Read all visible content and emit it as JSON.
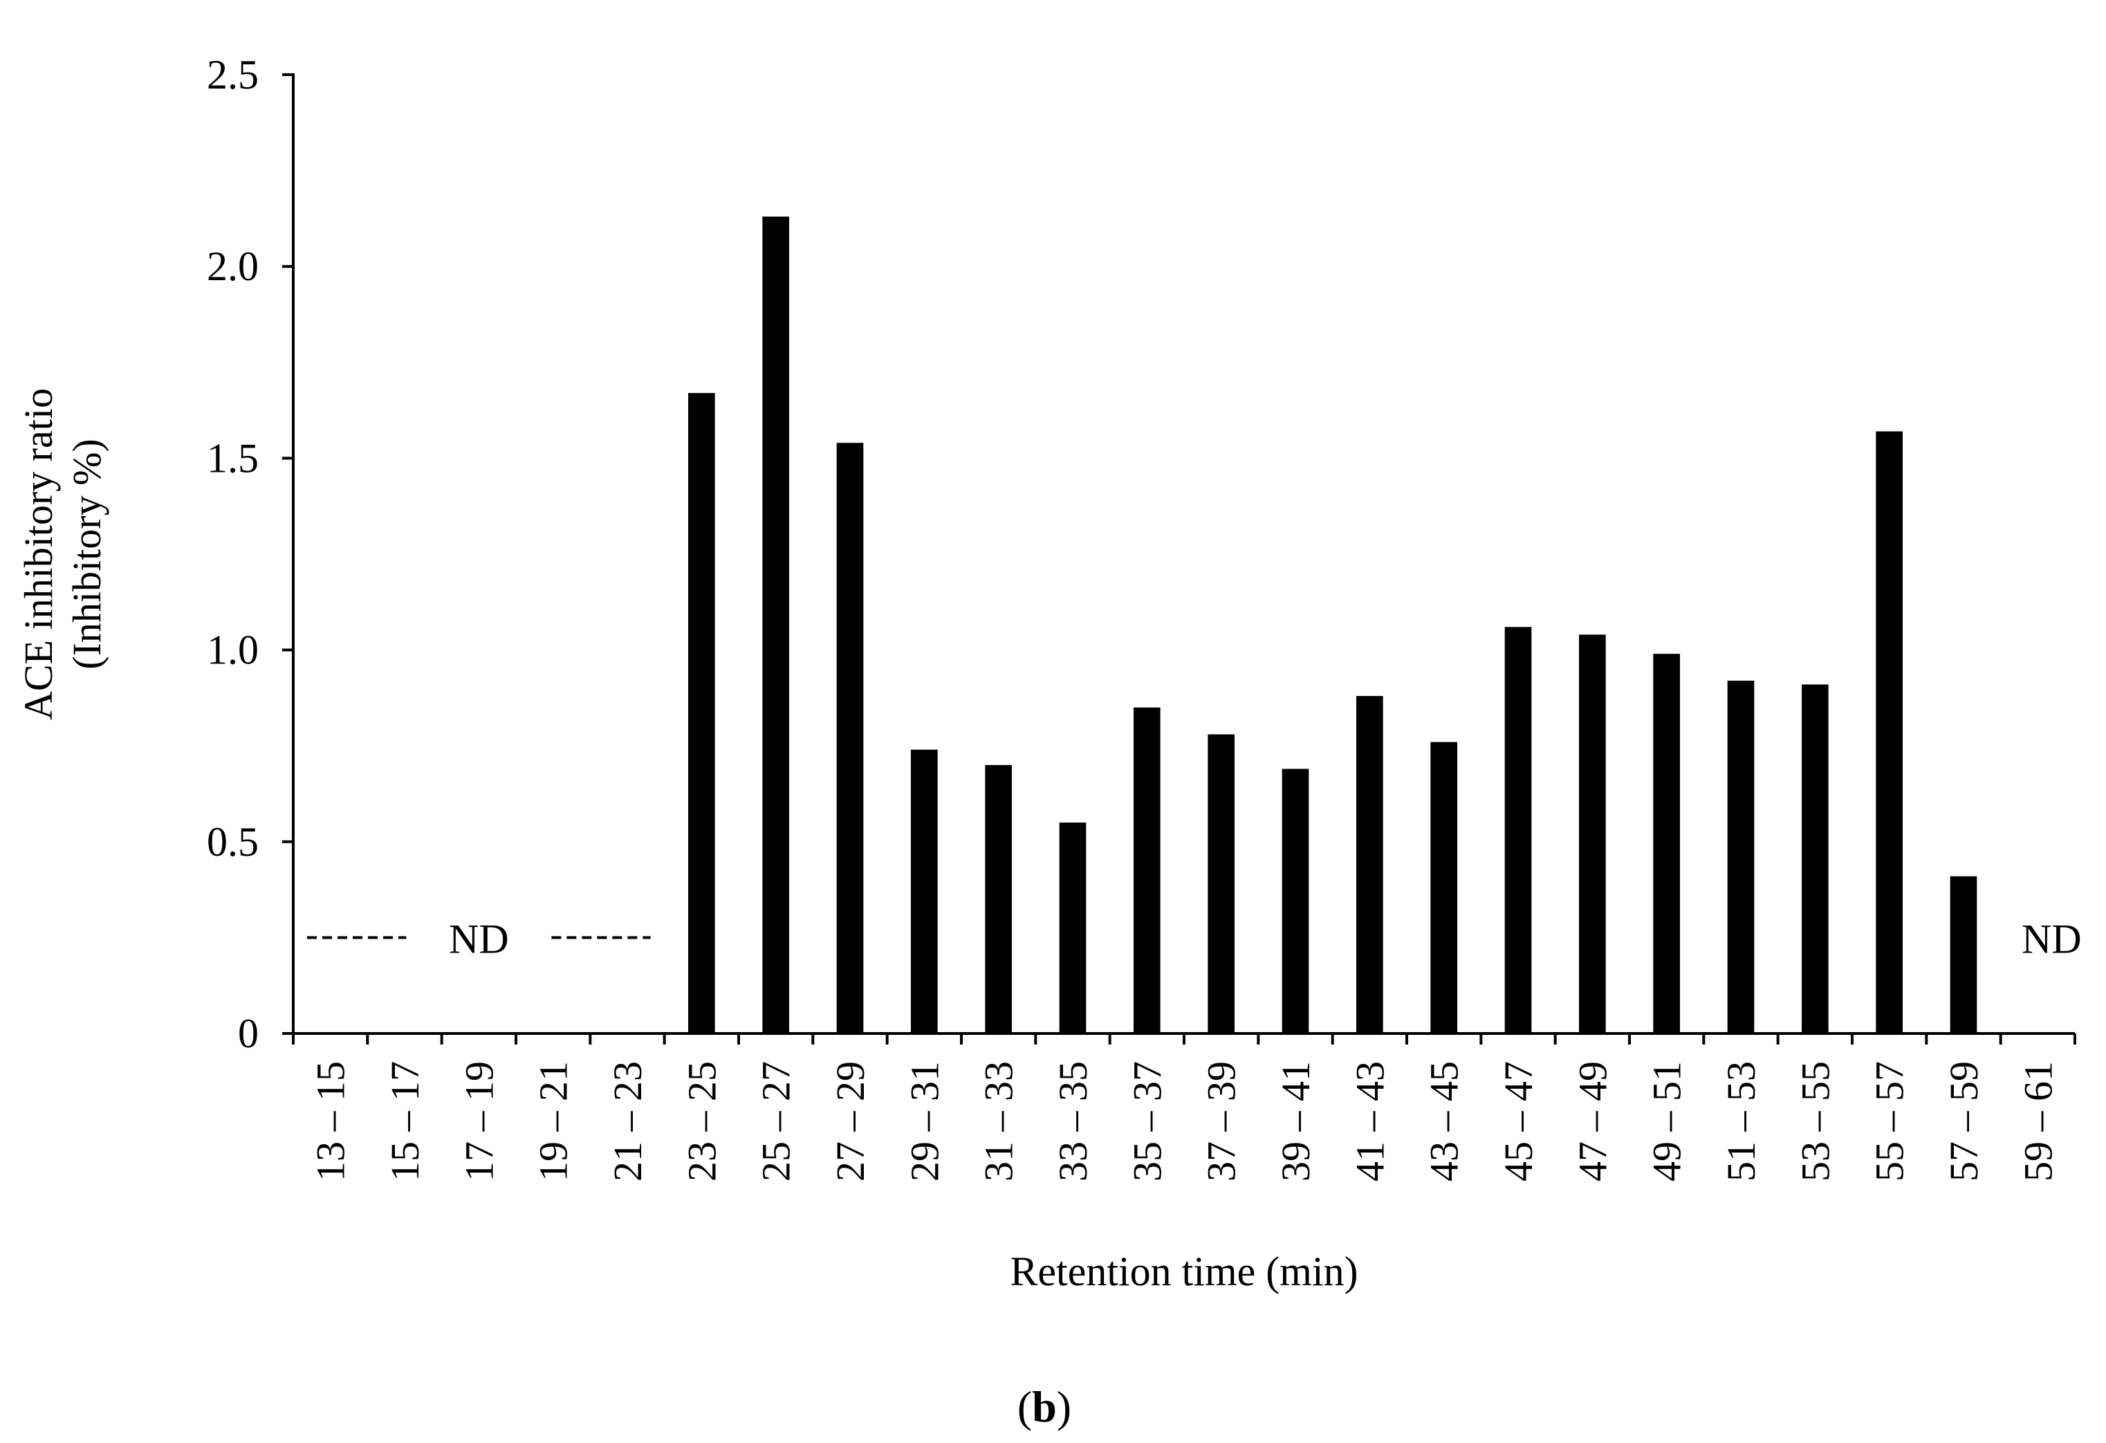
{
  "chart_data": {
    "type": "bar",
    "categories": [
      "13 – 15",
      "15 – 17",
      "17 – 19",
      "19 – 21",
      "21 – 23",
      "23 – 25",
      "25 – 27",
      "27 – 29",
      "29 – 31",
      "31 – 33",
      "33 – 35",
      "35 – 37",
      "37 – 39",
      "39 – 41",
      "41 – 43",
      "43 – 45",
      "45 – 47",
      "47 – 49",
      "49 – 51",
      "51 – 53",
      "53 – 55",
      "55 – 57",
      "57 – 59",
      "59 – 61"
    ],
    "values": [
      null,
      null,
      null,
      null,
      null,
      1.67,
      2.13,
      1.54,
      0.74,
      0.7,
      0.55,
      0.85,
      0.78,
      0.69,
      0.88,
      0.76,
      1.06,
      1.04,
      0.99,
      0.92,
      0.91,
      1.57,
      0.41,
      null
    ],
    "xlabel": "Retention time (min)",
    "ylabel_lines": [
      "ACE inhibitory ratio",
      "(Inhibitory %)"
    ],
    "ylim": [
      0,
      2.5
    ],
    "yticks": [
      0,
      0.5,
      1.0,
      1.5,
      2.0,
      2.5
    ],
    "ytick_labels": [
      "0",
      "0.5",
      "1.0",
      "1.5",
      "2.0",
      "2.5"
    ],
    "annotations": [
      {
        "text": "ND",
        "from_category": 0,
        "to_category": 4,
        "dashed": true
      },
      {
        "text": "ND",
        "category": 23,
        "dashed": false
      }
    ],
    "grid": false,
    "bar_color": "#000000"
  },
  "panel_label": {
    "open": "(",
    "letter": "b",
    "close": ")"
  }
}
